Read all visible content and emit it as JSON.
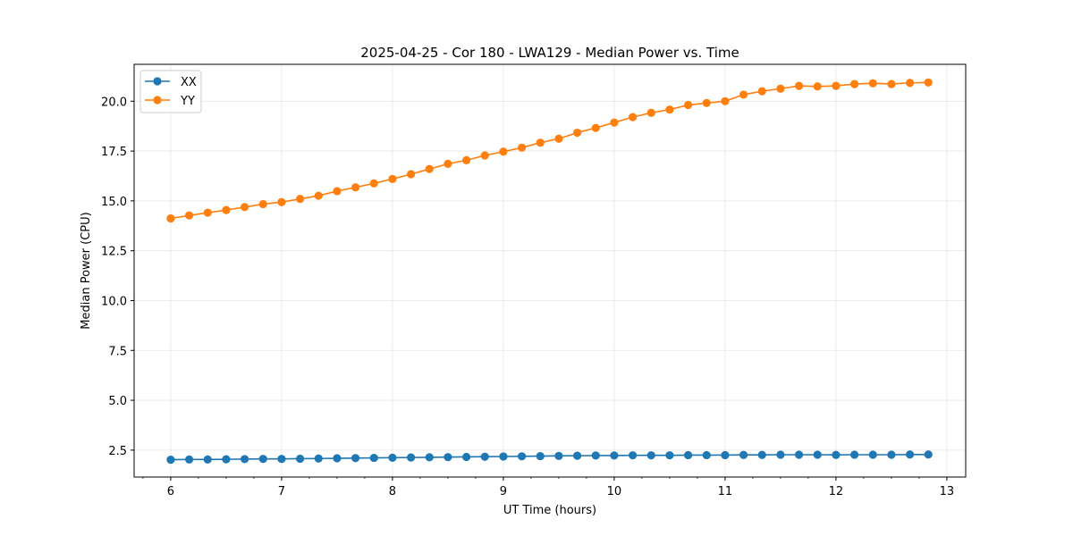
{
  "chart_data": {
    "type": "line",
    "title": "2025-04-25 - Cor 180 - LWA129 - Median Power vs. Time",
    "xlabel": "UT Time (hours)",
    "ylabel": "Median Power (CPU)",
    "xlim": [
      5.67,
      13.17
    ],
    "ylim": [
      1.15,
      21.85
    ],
    "xticks": [
      6,
      7,
      8,
      9,
      10,
      11,
      12,
      13
    ],
    "xtick_labels": [
      "6",
      "7",
      "8",
      "9",
      "10",
      "11",
      "12",
      "13"
    ],
    "xminor_step": 0.25,
    "yticks": [
      2.5,
      5.0,
      7.5,
      10.0,
      12.5,
      15.0,
      17.5,
      20.0
    ],
    "ytick_labels": [
      "2.5",
      "5.0",
      "7.5",
      "10.0",
      "12.5",
      "15.0",
      "17.5",
      "20.0"
    ],
    "grid": true,
    "legend_position": "top-left",
    "x": [
      6.0,
      6.1667,
      6.3333,
      6.5,
      6.6667,
      6.8333,
      7.0,
      7.1667,
      7.3333,
      7.5,
      7.6667,
      7.8333,
      8.0,
      8.1667,
      8.3333,
      8.5,
      8.6667,
      8.8333,
      9.0,
      9.1667,
      9.3333,
      9.5,
      9.6667,
      9.8333,
      10.0,
      10.1667,
      10.3333,
      10.5,
      10.6667,
      10.8333,
      11.0,
      11.1667,
      11.3333,
      11.5,
      11.6667,
      11.8333,
      12.0,
      12.1667,
      12.3333,
      12.5,
      12.6667,
      12.8333
    ],
    "series": [
      {
        "name": "XX",
        "color": "#1f77b4",
        "values": [
          2.02,
          2.03,
          2.03,
          2.04,
          2.05,
          2.06,
          2.06,
          2.07,
          2.08,
          2.09,
          2.1,
          2.11,
          2.12,
          2.13,
          2.14,
          2.15,
          2.16,
          2.17,
          2.18,
          2.19,
          2.2,
          2.21,
          2.22,
          2.23,
          2.23,
          2.24,
          2.24,
          2.24,
          2.25,
          2.25,
          2.25,
          2.26,
          2.26,
          2.27,
          2.27,
          2.27,
          2.26,
          2.27,
          2.27,
          2.27,
          2.28,
          2.28
        ]
      },
      {
        "name": "YY",
        "color": "#ff7f0e",
        "values": [
          14.12,
          14.27,
          14.41,
          14.54,
          14.69,
          14.84,
          14.94,
          15.1,
          15.26,
          15.49,
          15.68,
          15.88,
          16.1,
          16.34,
          16.6,
          16.86,
          17.04,
          17.28,
          17.47,
          17.67,
          17.92,
          18.12,
          18.42,
          18.66,
          18.93,
          19.2,
          19.42,
          19.58,
          19.81,
          19.91,
          20.0,
          20.33,
          20.5,
          20.63,
          20.77,
          20.74,
          20.77,
          20.86,
          20.9,
          20.86,
          20.92,
          20.94
        ]
      }
    ]
  }
}
